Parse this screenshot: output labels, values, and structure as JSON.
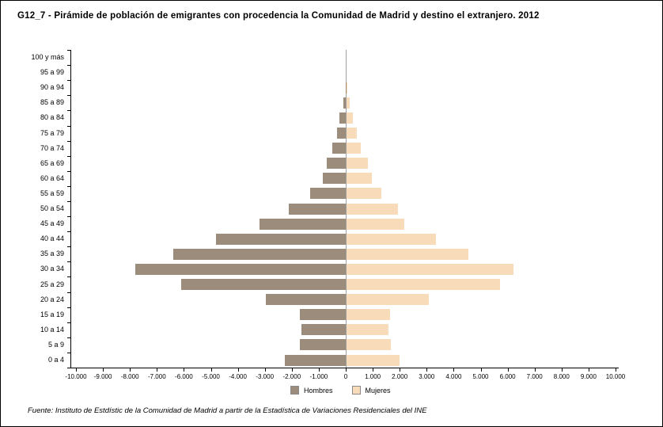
{
  "title": "G12_7 - Pirámide de población de emigrantes con procedencia la Comunidad de Madrid y destino el extranjero. 2012",
  "footer": "Fuente: Instituto de Estdístic de la Comunidad de Madrid a partir de la Estadística de Variaciones Residenciales del INE",
  "legend": {
    "hombres": "Hombres",
    "mujeres": "Mujeres"
  },
  "colors": {
    "hombres": "#9b8c7b",
    "mujeres": "#f8dcba",
    "axis": "#000000",
    "centerline": "#a0a0a0"
  },
  "chart_data": {
    "type": "bar",
    "subtype": "population-pyramid",
    "title": "G12_7 - Pirámide de población de emigrantes con procedencia la Comunidad de Madrid y destino el extranjero. 2012",
    "categories": [
      "100 y más",
      "95 a 99",
      "90 a 94",
      "85 a 89",
      "80 a 84",
      "75 a 79",
      "70 a 74",
      "65 a 69",
      "60 a 64",
      "55 a 59",
      "50 a 54",
      "45 a 49",
      "40 a 44",
      "35 a 39",
      "30 a 34",
      "25 a 29",
      "20 a 24",
      "15 a 19",
      "10 a 14",
      "5 a 9",
      "0 a 4"
    ],
    "categories_order": "top-to-bottom",
    "series": [
      {
        "name": "Hombres",
        "side": "left",
        "values": [
          2,
          5,
          15,
          100,
          225,
          320,
          490,
          700,
          850,
          1320,
          2100,
          3200,
          4800,
          6400,
          7800,
          6100,
          2950,
          1700,
          1650,
          1700,
          2250
        ]
      },
      {
        "name": "Mujeres",
        "side": "right",
        "values": [
          2,
          6,
          20,
          130,
          235,
          380,
          530,
          800,
          950,
          1300,
          1900,
          2150,
          3300,
          4500,
          6200,
          5700,
          3050,
          1600,
          1550,
          1650,
          1950
        ]
      }
    ],
    "x_axis": {
      "min": -10000,
      "max": 10000,
      "step": 1000,
      "tick_labels": [
        "-10.000",
        "-9.000",
        "-8.000",
        "-7.000",
        "-6.000",
        "-5.000",
        "-4.000",
        "-3.000",
        "-2.000",
        "-1.000",
        "0",
        "1.000",
        "2.000",
        "3.000",
        "4.000",
        "5.000",
        "6.000",
        "7.000",
        "8.000",
        "9.000",
        "10.000"
      ]
    },
    "grid": false,
    "legend_position": "bottom"
  }
}
